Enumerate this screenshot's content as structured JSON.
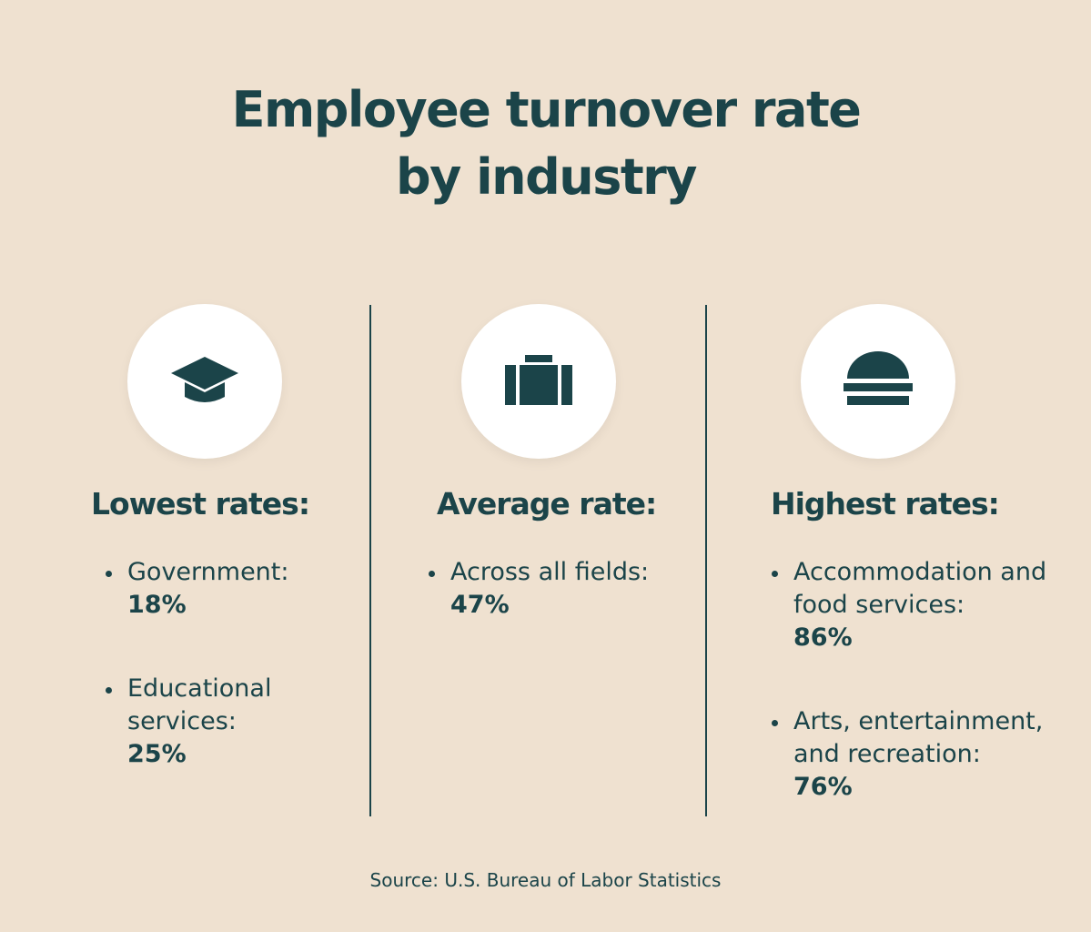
{
  "header": {
    "title": "Employee turnover rate by industry"
  },
  "columns": [
    {
      "heading": "Lowest rates:",
      "items": [
        {
          "label": "Government:",
          "value": "18%"
        },
        {
          "label": "Educational services:",
          "value": "25%"
        }
      ]
    },
    {
      "heading": "Average rate:",
      "items": [
        {
          "label": "Across all fields:",
          "value": "47%"
        }
      ]
    },
    {
      "heading": "Highest rates:",
      "items": [
        {
          "label": "Accommodation and food services:",
          "value": "86%"
        },
        {
          "label": "Arts, entertainment, and recreation:",
          "value": "76%"
        }
      ]
    }
  ],
  "footer": {
    "source": "Source: U.S. Bureau of Labor Statistics"
  }
}
